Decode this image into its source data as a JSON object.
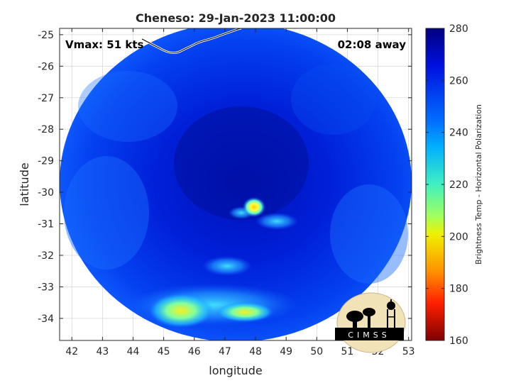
{
  "title": "Cheneso: 29-Jan-2023 11:00:00",
  "annotations": {
    "vmax": "Vmax: 51 kts",
    "away": "02:08 away"
  },
  "logo_text": "CIMSS",
  "chart_data": {
    "type": "heatmap",
    "title": "Cheneso: 29-Jan-2023 11:00:00",
    "xlabel": "longitude",
    "ylabel": "latitude",
    "xlim": [
      41.6,
      53.1
    ],
    "ylim": [
      -34.7,
      -24.8
    ],
    "xticks": [
      "42",
      "43",
      "44",
      "45",
      "46",
      "47",
      "48",
      "49",
      "50",
      "51",
      "52",
      "53"
    ],
    "yticks": [
      "-25",
      "-26",
      "-27",
      "-28",
      "-29",
      "-30",
      "-31",
      "-32",
      "-33",
      "-34"
    ],
    "grid": true,
    "swath_center": [
      47.45,
      -29.7
    ],
    "storm_center": [
      47.9,
      -30.45
    ],
    "colorbar": {
      "label": "Brightness Temp - Horizontal Polarization",
      "min": 160,
      "max": 280,
      "ticks": [
        "280",
        "260",
        "240",
        "220",
        "200",
        "180",
        "160"
      ]
    },
    "features": [
      {
        "name": "warm eye",
        "lon": 47.9,
        "lat": -30.45,
        "value": 205
      },
      {
        "name": "southern rain band",
        "lon": 46.3,
        "lat": -33.9,
        "value": 220
      },
      {
        "name": "central cold region",
        "lon": 47.5,
        "lat": -29.5,
        "value": 268
      },
      {
        "name": "background",
        "lon": 44.0,
        "lat": -28.0,
        "value": 258
      }
    ]
  }
}
